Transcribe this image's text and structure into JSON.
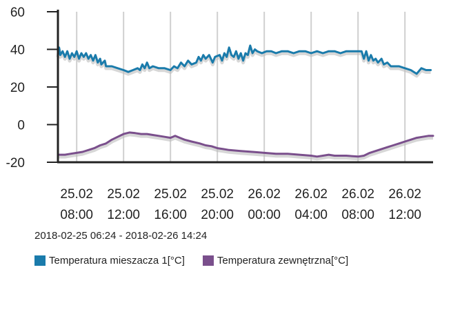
{
  "chart_data": {
    "type": "line",
    "ylim": [
      -20,
      60
    ],
    "yticks": [
      60,
      40,
      20,
      0,
      -20
    ],
    "x_hours_range": [
      6.4,
      38.4
    ],
    "xticks": [
      {
        "date": "25.02",
        "time": "08:00",
        "hour": 8
      },
      {
        "date": "25.02",
        "time": "12:00",
        "hour": 12
      },
      {
        "date": "25.02",
        "time": "16:00",
        "hour": 16
      },
      {
        "date": "25.02",
        "time": "20:00",
        "hour": 20
      },
      {
        "date": "26.02",
        "time": "00:00",
        "hour": 24
      },
      {
        "date": "26.02",
        "time": "04:00",
        "hour": 28
      },
      {
        "date": "26.02",
        "time": "08:00",
        "hour": 32
      },
      {
        "date": "26.02",
        "time": "12:00",
        "hour": 36
      }
    ],
    "grid": true,
    "legend_position": "bottom-left",
    "series": [
      {
        "name": "Temperatura mieszacza 1[°C]",
        "color": "#1a7bab",
        "points": [
          [
            6.4,
            37
          ],
          [
            6.5,
            41
          ],
          [
            6.6,
            37
          ],
          [
            6.8,
            39
          ],
          [
            7.0,
            36
          ],
          [
            7.2,
            39
          ],
          [
            7.4,
            35
          ],
          [
            7.6,
            38
          ],
          [
            7.8,
            36
          ],
          [
            8.0,
            39
          ],
          [
            8.2,
            35
          ],
          [
            8.4,
            38
          ],
          [
            8.6,
            36
          ],
          [
            8.8,
            38
          ],
          [
            9.0,
            35
          ],
          [
            9.2,
            37
          ],
          [
            9.4,
            34
          ],
          [
            9.6,
            37
          ],
          [
            9.8,
            33
          ],
          [
            10.0,
            35
          ],
          [
            10.1,
            32
          ],
          [
            10.4,
            34
          ],
          [
            10.5,
            31
          ],
          [
            11.0,
            31
          ],
          [
            11.5,
            30
          ],
          [
            12.0,
            29
          ],
          [
            12.4,
            28
          ],
          [
            12.8,
            29
          ],
          [
            13.2,
            30
          ],
          [
            13.4,
            29
          ],
          [
            13.6,
            32
          ],
          [
            13.8,
            30
          ],
          [
            14.0,
            33
          ],
          [
            14.2,
            30
          ],
          [
            14.5,
            31
          ],
          [
            15.0,
            30
          ],
          [
            15.5,
            30
          ],
          [
            16.0,
            29
          ],
          [
            16.3,
            31
          ],
          [
            16.6,
            30
          ],
          [
            16.9,
            33
          ],
          [
            17.2,
            31
          ],
          [
            17.5,
            34
          ],
          [
            17.8,
            32
          ],
          [
            18.2,
            33
          ],
          [
            18.4,
            36
          ],
          [
            18.6,
            34
          ],
          [
            18.8,
            37
          ],
          [
            19.0,
            35
          ],
          [
            19.3,
            37
          ],
          [
            19.6,
            33
          ],
          [
            19.8,
            36
          ],
          [
            20.2,
            37
          ],
          [
            20.4,
            34
          ],
          [
            20.6,
            38
          ],
          [
            20.8,
            36
          ],
          [
            21.0,
            41
          ],
          [
            21.2,
            37
          ],
          [
            21.4,
            36
          ],
          [
            21.6,
            39
          ],
          [
            21.8,
            35
          ],
          [
            22.0,
            38
          ],
          [
            22.2,
            34
          ],
          [
            22.4,
            38
          ],
          [
            22.6,
            37
          ],
          [
            22.8,
            42
          ],
          [
            23.0,
            38
          ],
          [
            23.2,
            40
          ],
          [
            23.4,
            39
          ],
          [
            23.8,
            38
          ],
          [
            24.2,
            39
          ],
          [
            24.6,
            39
          ],
          [
            25.0,
            38
          ],
          [
            25.5,
            39
          ],
          [
            26.0,
            39
          ],
          [
            26.5,
            38
          ],
          [
            27.0,
            39
          ],
          [
            27.5,
            39
          ],
          [
            28.0,
            38
          ],
          [
            28.5,
            39
          ],
          [
            29.0,
            38
          ],
          [
            29.5,
            39
          ],
          [
            30.0,
            39
          ],
          [
            30.5,
            38
          ],
          [
            31.0,
            39
          ],
          [
            31.5,
            39
          ],
          [
            32.0,
            39
          ],
          [
            32.3,
            39
          ],
          [
            32.5,
            35
          ],
          [
            32.7,
            39
          ],
          [
            32.9,
            34
          ],
          [
            33.1,
            37
          ],
          [
            33.3,
            34
          ],
          [
            33.5,
            35
          ],
          [
            33.7,
            33
          ],
          [
            34.0,
            35
          ],
          [
            34.2,
            32
          ],
          [
            34.5,
            33
          ],
          [
            34.8,
            31
          ],
          [
            35.5,
            31
          ],
          [
            36.0,
            30
          ],
          [
            36.5,
            29
          ],
          [
            37.0,
            27
          ],
          [
            37.4,
            30
          ],
          [
            37.8,
            29
          ],
          [
            38.2,
            29
          ]
        ]
      },
      {
        "name": "Temperatura zewnętrzna[°C]",
        "color": "#7a4f8c",
        "points": [
          [
            6.4,
            -16
          ],
          [
            7.0,
            -16
          ],
          [
            7.5,
            -15.5
          ],
          [
            8.0,
            -15
          ],
          [
            8.5,
            -14.5
          ],
          [
            9.0,
            -13.5
          ],
          [
            9.5,
            -12.5
          ],
          [
            10.0,
            -11
          ],
          [
            10.5,
            -10
          ],
          [
            11.0,
            -8
          ],
          [
            11.5,
            -6.5
          ],
          [
            12.0,
            -5
          ],
          [
            12.5,
            -4.2
          ],
          [
            13.0,
            -4.5
          ],
          [
            13.5,
            -5
          ],
          [
            14.0,
            -5
          ],
          [
            14.5,
            -5.5
          ],
          [
            15.0,
            -6
          ],
          [
            15.5,
            -6.5
          ],
          [
            16.0,
            -7
          ],
          [
            16.4,
            -6
          ],
          [
            16.8,
            -7
          ],
          [
            17.2,
            -8
          ],
          [
            17.8,
            -9
          ],
          [
            18.5,
            -10
          ],
          [
            19.0,
            -11
          ],
          [
            19.5,
            -11.5
          ],
          [
            20.0,
            -12.5
          ],
          [
            20.5,
            -13
          ],
          [
            21.0,
            -13.5
          ],
          [
            22.0,
            -14
          ],
          [
            23.0,
            -14.5
          ],
          [
            24.0,
            -15
          ],
          [
            25.0,
            -15.5
          ],
          [
            26.0,
            -15.5
          ],
          [
            27.0,
            -16
          ],
          [
            28.0,
            -16.5
          ],
          [
            28.5,
            -17
          ],
          [
            29.0,
            -16.5
          ],
          [
            29.5,
            -16
          ],
          [
            30.0,
            -16.5
          ],
          [
            31.0,
            -16.5
          ],
          [
            32.0,
            -17
          ],
          [
            32.5,
            -16.5
          ],
          [
            33.0,
            -15
          ],
          [
            33.5,
            -14
          ],
          [
            34.0,
            -13
          ],
          [
            34.5,
            -12
          ],
          [
            35.0,
            -11
          ],
          [
            35.5,
            -10
          ],
          [
            36.0,
            -9
          ],
          [
            36.5,
            -8
          ],
          [
            37.0,
            -7
          ],
          [
            37.5,
            -6.5
          ],
          [
            38.0,
            -6
          ],
          [
            38.4,
            -6
          ]
        ]
      }
    ]
  },
  "range_label": "2018-02-25 06:24 - 2018-02-26 14:24",
  "legend": [
    {
      "label": "Temperatura mieszacza 1[°C]",
      "color": "#1a7bab"
    },
    {
      "label": "Temperatura zewnętrzna[°C]",
      "color": "#7a4f8c"
    }
  ]
}
